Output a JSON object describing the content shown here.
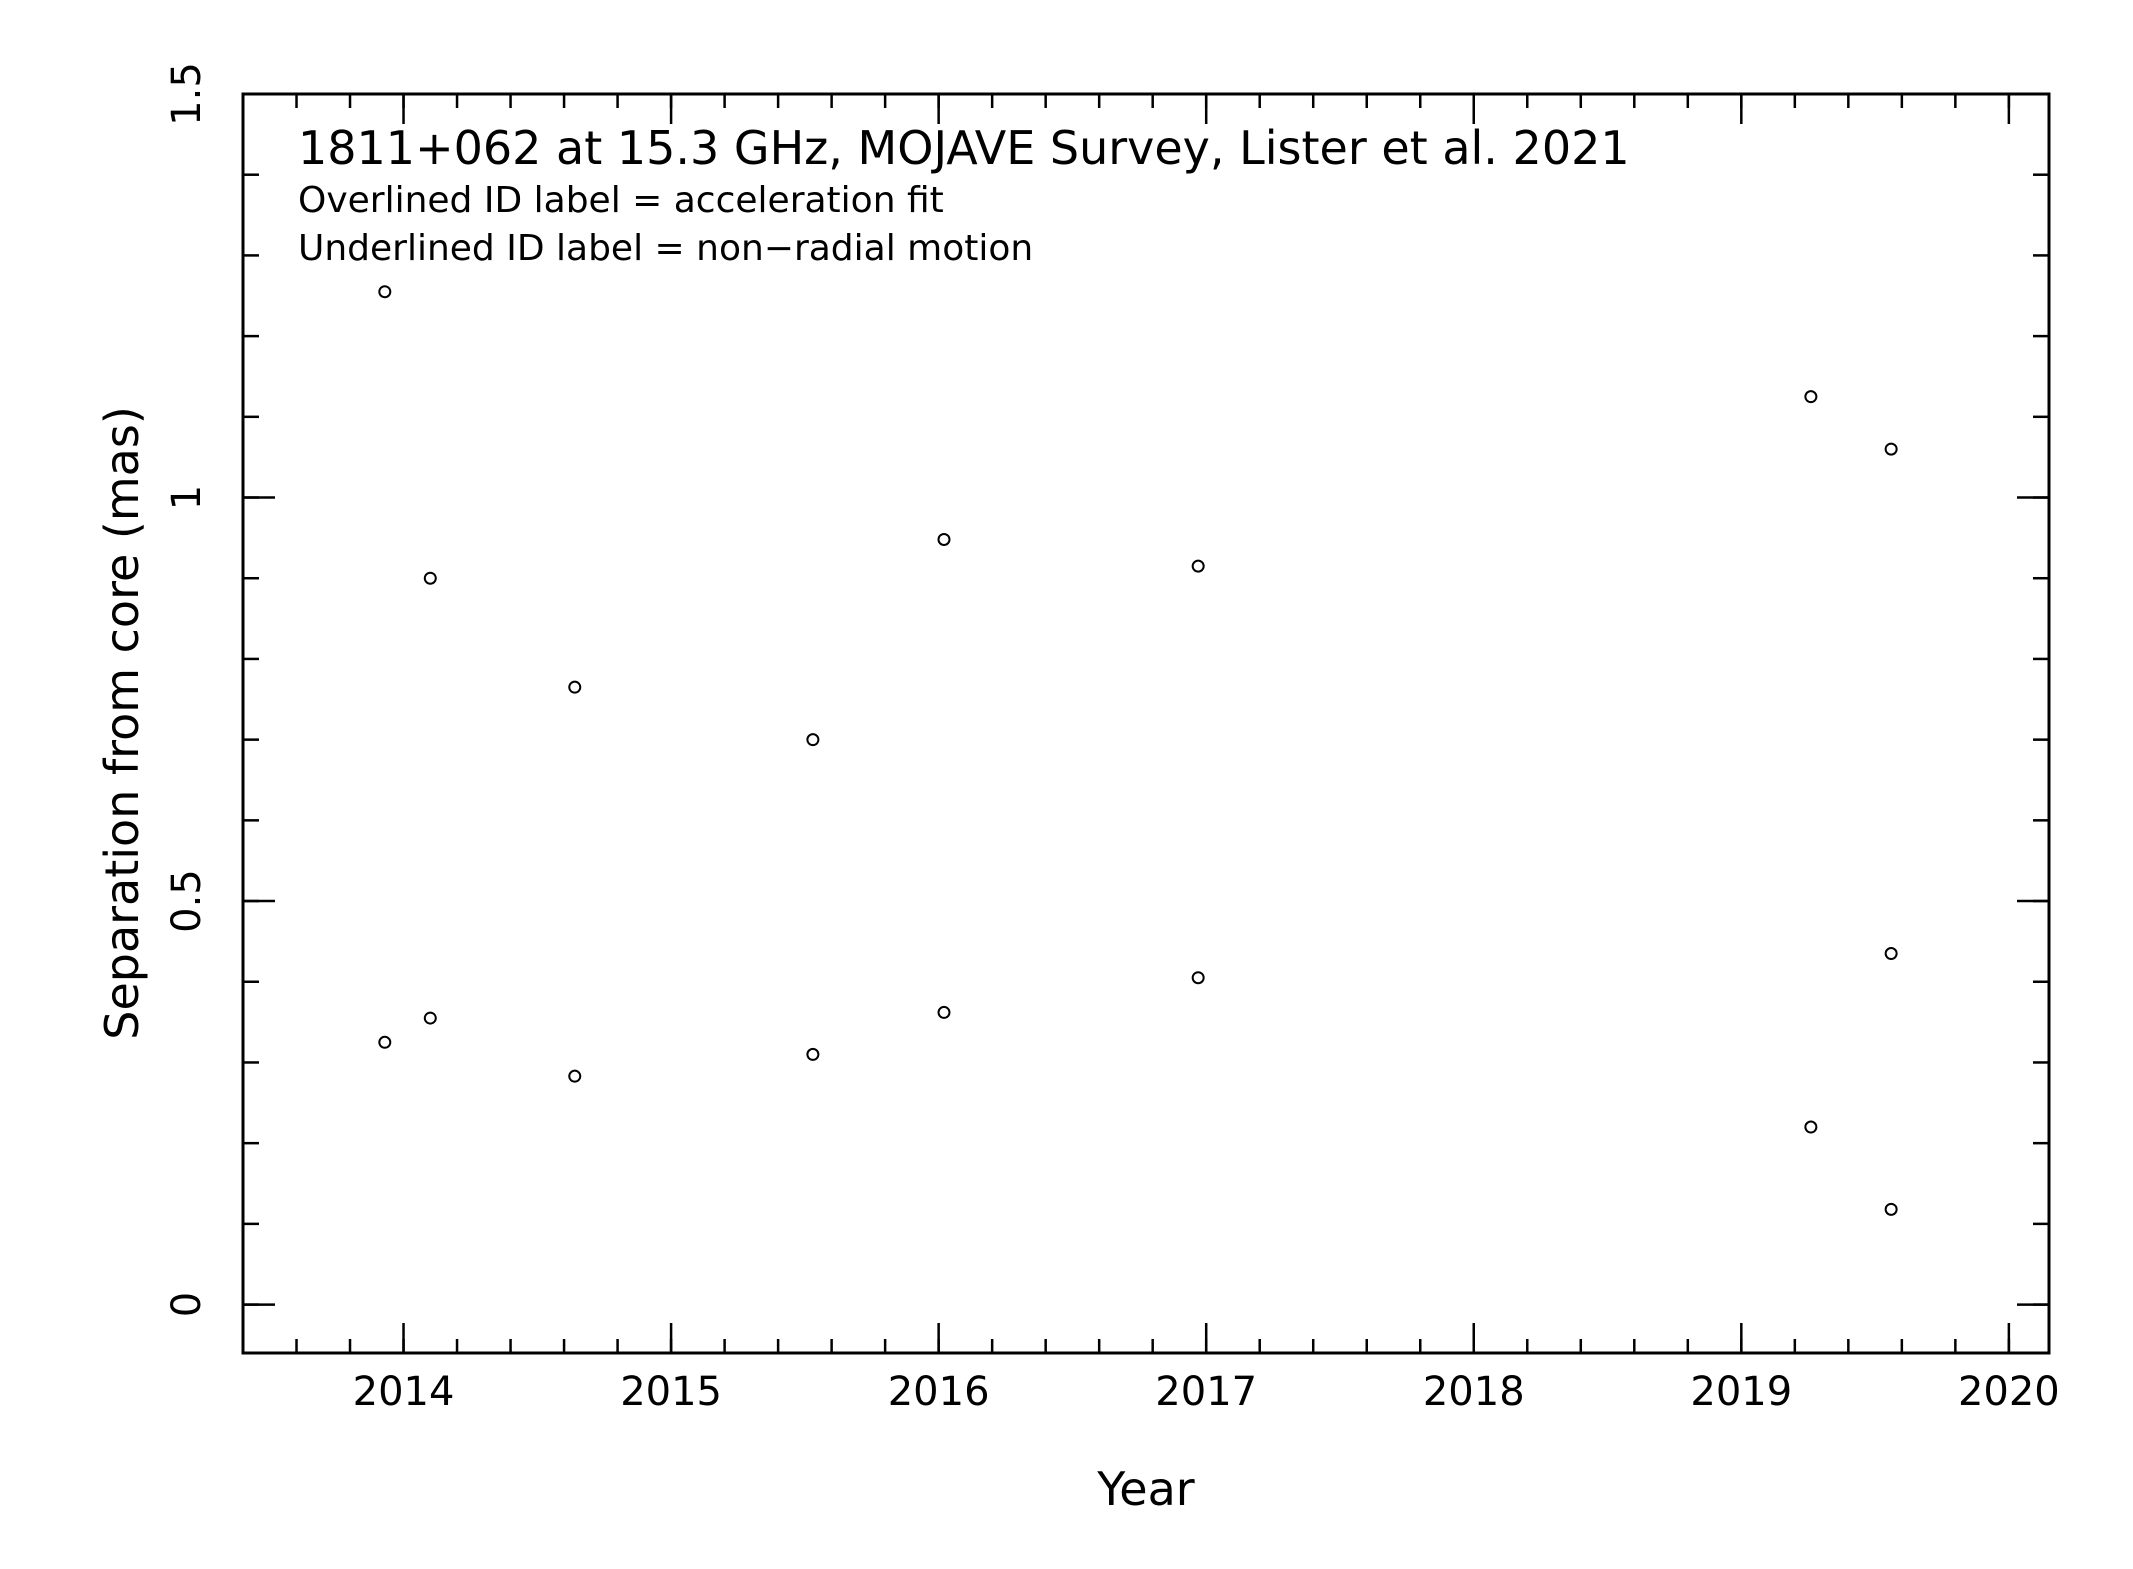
{
  "chart_data": {
    "type": "scatter",
    "title": "1811+062 at 15.3 GHz, MOJAVE Survey, Lister et al. 2021",
    "notes": [
      "Overlined ID label = acceleration fit",
      "Underlined ID label = non−radial motion"
    ],
    "xlabel": "Year",
    "ylabel": "Separation from core (mas)",
    "xlim": [
      2013.4,
      2020.15
    ],
    "ylim": [
      -0.06,
      1.5
    ],
    "xticks": [
      2014,
      2015,
      2016,
      2017,
      2018,
      2019,
      2020
    ],
    "yticks": [
      {
        "value": 0,
        "label": "0"
      },
      {
        "value": 0.5,
        "label": "0.5"
      },
      {
        "value": 1,
        "label": "1"
      },
      {
        "value": 1.5,
        "label": "1.5"
      }
    ],
    "x_minor_step": 0.2,
    "y_minor_step": 0.1,
    "grid": false,
    "marker": "open-circle",
    "color": "#000000",
    "points": [
      {
        "x": 2013.93,
        "y": 1.255
      },
      {
        "x": 2013.93,
        "y": 0.325
      },
      {
        "x": 2014.1,
        "y": 0.9
      },
      {
        "x": 2014.1,
        "y": 0.355
      },
      {
        "x": 2014.64,
        "y": 0.765
      },
      {
        "x": 2014.64,
        "y": 0.283
      },
      {
        "x": 2015.53,
        "y": 0.7
      },
      {
        "x": 2015.53,
        "y": 0.31
      },
      {
        "x": 2016.02,
        "y": 0.948
      },
      {
        "x": 2016.02,
        "y": 0.362
      },
      {
        "x": 2016.97,
        "y": 0.915
      },
      {
        "x": 2016.97,
        "y": 0.405
      },
      {
        "x": 2019.26,
        "y": 1.125
      },
      {
        "x": 2019.26,
        "y": 0.22
      },
      {
        "x": 2019.56,
        "y": 1.06
      },
      {
        "x": 2019.56,
        "y": 0.435
      },
      {
        "x": 2019.56,
        "y": 0.118
      }
    ]
  }
}
